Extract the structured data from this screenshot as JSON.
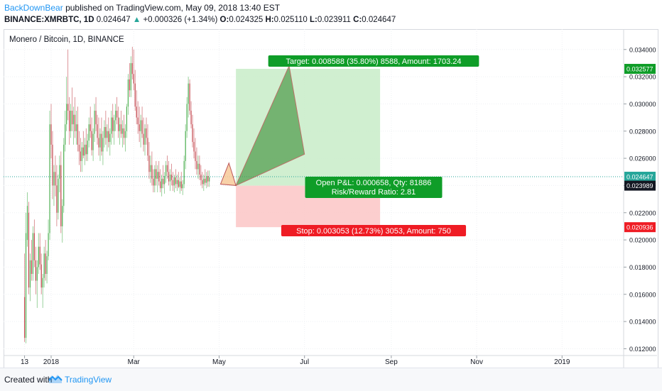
{
  "header": {
    "author": "BackDownBear",
    "published_text": "published on TradingView.com, May 09, 2018 13:40 EST"
  },
  "quote": {
    "symbol": "BINANCE:XMRBTC, 1D",
    "last": "0.024647",
    "change": "+0.000326 (+1.34%)",
    "open_label": "O:",
    "open": "0.024325",
    "high_label": "H:",
    "high": "0.025110",
    "low_label": "L:",
    "low": "0.023911",
    "close_label": "C:",
    "close": "0.024647"
  },
  "footer": {
    "created_with": "Created with",
    "brand": "TradingView"
  },
  "colors": {
    "up": "#26a69a",
    "candle_green": "#4caf50",
    "candle_red": "#c2434a",
    "target_zone": "#c8ecc8",
    "stop_zone": "#fcc6c6",
    "target_label": "#0f9d28",
    "stop_label": "#ef1c24",
    "price_line": "#26a69a",
    "pattern_fill": "#4e9a4a",
    "pattern_fill_orange": "#f7c99a",
    "pattern_stroke": "#b23b3b"
  },
  "chart_data": {
    "type": "candlestick",
    "title": "Monero / Bitcoin, 1D, BINANCE",
    "y_ticks": [
      "0.034000",
      "0.032000",
      "0.030000",
      "0.028000",
      "0.026000",
      "0.024000",
      "0.022000",
      "0.020000",
      "0.018000",
      "0.016000",
      "0.014000",
      "0.012000"
    ],
    "ylim": [
      0.0115,
      0.0355
    ],
    "x_ticks": [
      {
        "label": "13",
        "date": "2017-12-13"
      },
      {
        "label": "2018",
        "date": "2018-01-01"
      },
      {
        "label": "Mar",
        "date": "2018-03-01"
      },
      {
        "label": "May",
        "date": "2018-05-01"
      },
      {
        "label": "Jul",
        "date": "2018-07-01"
      },
      {
        "label": "Sep",
        "date": "2018-09-01"
      },
      {
        "label": "Nov",
        "date": "2018-11-01"
      },
      {
        "label": "2019",
        "date": "2019-01-01"
      }
    ],
    "xlim": [
      "2017-11-28",
      "2019-02-14"
    ],
    "grid": true,
    "price_labels": [
      {
        "value": 0.032577,
        "text": "0.032577",
        "kind": "target"
      },
      {
        "value": 0.024647,
        "text": "0.024647",
        "kind": "last"
      },
      {
        "value": 0.023989,
        "text": "0.023989",
        "kind": "neutral"
      },
      {
        "value": 0.020936,
        "text": "0.020936",
        "kind": "stop"
      }
    ],
    "position": {
      "entry": 0.023989,
      "target": 0.032577,
      "stop": 0.020936,
      "start": "2018-05-13",
      "end": "2018-08-24",
      "target_label": "Target: 0.008588 (35.80%) 8588, Amount: 1703.24",
      "stop_label": "Stop: 0.003053 (12.73%) 3053, Amount: 750",
      "pnl_label": "Open P&L: 0.000658, Qty: 81886",
      "rr_label": "Risk/Reward Ratio: 2.81"
    },
    "pattern_points": [
      {
        "date": "2018-05-02",
        "price": 0.0241
      },
      {
        "date": "2018-05-08",
        "price": 0.02565
      },
      {
        "date": "2018-05-13",
        "price": 0.024
      },
      {
        "date": "2018-06-20",
        "price": 0.0328
      },
      {
        "date": "2018-07-01",
        "price": 0.0263
      },
      {
        "date": "2018-05-13",
        "price": 0.024
      }
    ],
    "candles": [
      {
        "t": "2017-12-13",
        "o": 0.0158,
        "h": 0.019,
        "l": 0.0125,
        "c": 0.0128
      },
      {
        "t": "2017-12-14",
        "o": 0.0128,
        "h": 0.022,
        "l": 0.0124,
        "c": 0.0205
      },
      {
        "t": "2017-12-15",
        "o": 0.02,
        "h": 0.0235,
        "l": 0.0195,
        "c": 0.0225
      },
      {
        "t": "2017-12-16",
        "o": 0.022,
        "h": 0.0228,
        "l": 0.016,
        "c": 0.0165
      },
      {
        "t": "2017-12-17",
        "o": 0.0165,
        "h": 0.019,
        "l": 0.0155,
        "c": 0.0185
      },
      {
        "t": "2017-12-18",
        "o": 0.0185,
        "h": 0.02,
        "l": 0.017,
        "c": 0.0175
      },
      {
        "t": "2017-12-19",
        "o": 0.0175,
        "h": 0.021,
        "l": 0.017,
        "c": 0.0205
      },
      {
        "t": "2017-12-20",
        "o": 0.0205,
        "h": 0.0215,
        "l": 0.018,
        "c": 0.0185
      },
      {
        "t": "2017-12-21",
        "o": 0.0185,
        "h": 0.0195,
        "l": 0.016,
        "c": 0.017
      },
      {
        "t": "2017-12-22",
        "o": 0.017,
        "h": 0.0185,
        "l": 0.015,
        "c": 0.018
      },
      {
        "t": "2017-12-23",
        "o": 0.018,
        "h": 0.0205,
        "l": 0.0175,
        "c": 0.0195
      },
      {
        "t": "2017-12-24",
        "o": 0.0195,
        "h": 0.0205,
        "l": 0.0178,
        "c": 0.0182
      },
      {
        "t": "2017-12-25",
        "o": 0.0182,
        "h": 0.019,
        "l": 0.016,
        "c": 0.0165
      },
      {
        "t": "2017-12-26",
        "o": 0.0165,
        "h": 0.0175,
        "l": 0.015,
        "c": 0.0172
      },
      {
        "t": "2017-12-27",
        "o": 0.0172,
        "h": 0.0195,
        "l": 0.0165,
        "c": 0.019
      },
      {
        "t": "2017-12-28",
        "o": 0.019,
        "h": 0.02,
        "l": 0.017,
        "c": 0.0175
      },
      {
        "t": "2017-12-29",
        "o": 0.0175,
        "h": 0.0192,
        "l": 0.0168,
        "c": 0.0188
      },
      {
        "t": "2017-12-30",
        "o": 0.0188,
        "h": 0.0215,
        "l": 0.0185,
        "c": 0.0205
      },
      {
        "t": "2017-12-31",
        "o": 0.0205,
        "h": 0.0295,
        "l": 0.02,
        "c": 0.0285
      },
      {
        "t": "2018-01-01",
        "o": 0.0285,
        "h": 0.03,
        "l": 0.026,
        "c": 0.027
      },
      {
        "t": "2018-01-02",
        "o": 0.027,
        "h": 0.028,
        "l": 0.023,
        "c": 0.024
      },
      {
        "t": "2018-01-03",
        "o": 0.024,
        "h": 0.0255,
        "l": 0.0225,
        "c": 0.025
      },
      {
        "t": "2018-01-04",
        "o": 0.025,
        "h": 0.0262,
        "l": 0.0232,
        "c": 0.024
      },
      {
        "t": "2018-01-05",
        "o": 0.024,
        "h": 0.0255,
        "l": 0.021,
        "c": 0.022
      },
      {
        "t": "2018-01-06",
        "o": 0.022,
        "h": 0.0248,
        "l": 0.0215,
        "c": 0.0245
      },
      {
        "t": "2018-01-07",
        "o": 0.0245,
        "h": 0.0262,
        "l": 0.0235,
        "c": 0.0255
      },
      {
        "t": "2018-01-08",
        "o": 0.0255,
        "h": 0.0265,
        "l": 0.0205,
        "c": 0.021
      },
      {
        "t": "2018-01-09",
        "o": 0.021,
        "h": 0.023,
        "l": 0.0198,
        "c": 0.0225
      },
      {
        "t": "2018-01-10",
        "o": 0.0225,
        "h": 0.0275,
        "l": 0.022,
        "c": 0.027
      },
      {
        "t": "2018-01-11",
        "o": 0.027,
        "h": 0.0295,
        "l": 0.0265,
        "c": 0.0285
      },
      {
        "t": "2018-01-12",
        "o": 0.0285,
        "h": 0.032,
        "l": 0.028,
        "c": 0.03
      },
      {
        "t": "2018-01-13",
        "o": 0.03,
        "h": 0.034,
        "l": 0.0288,
        "c": 0.0295
      },
      {
        "t": "2018-01-14",
        "o": 0.0295,
        "h": 0.0305,
        "l": 0.027,
        "c": 0.028
      },
      {
        "t": "2018-01-15",
        "o": 0.028,
        "h": 0.03,
        "l": 0.0275,
        "c": 0.0295
      },
      {
        "t": "2018-01-16",
        "o": 0.0295,
        "h": 0.0312,
        "l": 0.028,
        "c": 0.0285
      },
      {
        "t": "2018-01-17",
        "o": 0.0285,
        "h": 0.0298,
        "l": 0.027,
        "c": 0.0292
      },
      {
        "t": "2018-01-18",
        "o": 0.0292,
        "h": 0.0305,
        "l": 0.0275,
        "c": 0.028
      },
      {
        "t": "2018-01-19",
        "o": 0.028,
        "h": 0.0295,
        "l": 0.027,
        "c": 0.0285
      },
      {
        "t": "2018-01-20",
        "o": 0.0285,
        "h": 0.0298,
        "l": 0.0265,
        "c": 0.027
      },
      {
        "t": "2018-01-21",
        "o": 0.027,
        "h": 0.028,
        "l": 0.0255,
        "c": 0.0265
      },
      {
        "t": "2018-01-22",
        "o": 0.0265,
        "h": 0.0275,
        "l": 0.025,
        "c": 0.0258
      },
      {
        "t": "2018-01-23",
        "o": 0.0258,
        "h": 0.0272,
        "l": 0.025,
        "c": 0.0268
      },
      {
        "t": "2018-01-24",
        "o": 0.0268,
        "h": 0.028,
        "l": 0.026,
        "c": 0.0262
      },
      {
        "t": "2018-01-25",
        "o": 0.0262,
        "h": 0.0275,
        "l": 0.0255,
        "c": 0.027
      },
      {
        "t": "2018-01-26",
        "o": 0.027,
        "h": 0.0282,
        "l": 0.0258,
        "c": 0.0263
      },
      {
        "t": "2018-01-27",
        "o": 0.0263,
        "h": 0.0278,
        "l": 0.0258,
        "c": 0.0273
      },
      {
        "t": "2018-01-28",
        "o": 0.0273,
        "h": 0.029,
        "l": 0.0268,
        "c": 0.0285
      },
      {
        "t": "2018-01-29",
        "o": 0.0285,
        "h": 0.0298,
        "l": 0.0275,
        "c": 0.028
      },
      {
        "t": "2018-01-30",
        "o": 0.028,
        "h": 0.029,
        "l": 0.0262,
        "c": 0.0266
      },
      {
        "t": "2018-01-31",
        "o": 0.0266,
        "h": 0.0282,
        "l": 0.0258,
        "c": 0.0278
      },
      {
        "t": "2018-02-01",
        "o": 0.0278,
        "h": 0.03,
        "l": 0.0272,
        "c": 0.0295
      },
      {
        "t": "2018-02-02",
        "o": 0.0295,
        "h": 0.0305,
        "l": 0.028,
        "c": 0.0285
      },
      {
        "t": "2018-02-03",
        "o": 0.0285,
        "h": 0.0292,
        "l": 0.027,
        "c": 0.0275
      },
      {
        "t": "2018-02-04",
        "o": 0.0275,
        "h": 0.029,
        "l": 0.0262,
        "c": 0.0268
      },
      {
        "t": "2018-02-05",
        "o": 0.0268,
        "h": 0.0282,
        "l": 0.0258,
        "c": 0.0278
      },
      {
        "t": "2018-02-06",
        "o": 0.0278,
        "h": 0.029,
        "l": 0.0262,
        "c": 0.0265
      },
      {
        "t": "2018-02-07",
        "o": 0.0265,
        "h": 0.028,
        "l": 0.0255,
        "c": 0.0275
      },
      {
        "t": "2018-02-08",
        "o": 0.0275,
        "h": 0.0288,
        "l": 0.0268,
        "c": 0.0283
      },
      {
        "t": "2018-02-09",
        "o": 0.0283,
        "h": 0.0295,
        "l": 0.027,
        "c": 0.0275
      },
      {
        "t": "2018-02-10",
        "o": 0.0275,
        "h": 0.0285,
        "l": 0.0265,
        "c": 0.028
      },
      {
        "t": "2018-02-11",
        "o": 0.028,
        "h": 0.029,
        "l": 0.0268,
        "c": 0.0272
      },
      {
        "t": "2018-02-12",
        "o": 0.0272,
        "h": 0.0282,
        "l": 0.0262,
        "c": 0.0278
      },
      {
        "t": "2018-02-13",
        "o": 0.0278,
        "h": 0.0295,
        "l": 0.027,
        "c": 0.029
      },
      {
        "t": "2018-02-14",
        "o": 0.029,
        "h": 0.03,
        "l": 0.0275,
        "c": 0.028
      },
      {
        "t": "2018-02-15",
        "o": 0.028,
        "h": 0.0292,
        "l": 0.027,
        "c": 0.0288
      },
      {
        "t": "2018-02-16",
        "o": 0.0288,
        "h": 0.03,
        "l": 0.028,
        "c": 0.0295
      },
      {
        "t": "2018-02-17",
        "o": 0.0295,
        "h": 0.0305,
        "l": 0.0285,
        "c": 0.029
      },
      {
        "t": "2018-02-18",
        "o": 0.029,
        "h": 0.0298,
        "l": 0.0275,
        "c": 0.028
      },
      {
        "t": "2018-02-19",
        "o": 0.028,
        "h": 0.029,
        "l": 0.027,
        "c": 0.0285
      },
      {
        "t": "2018-02-20",
        "o": 0.0285,
        "h": 0.0295,
        "l": 0.0275,
        "c": 0.0278
      },
      {
        "t": "2018-02-21",
        "o": 0.0278,
        "h": 0.0288,
        "l": 0.0268,
        "c": 0.0282
      },
      {
        "t": "2018-02-22",
        "o": 0.0282,
        "h": 0.0292,
        "l": 0.027,
        "c": 0.0275
      },
      {
        "t": "2018-02-23",
        "o": 0.0275,
        "h": 0.0285,
        "l": 0.0265,
        "c": 0.028
      },
      {
        "t": "2018-02-24",
        "o": 0.028,
        "h": 0.03,
        "l": 0.0275,
        "c": 0.0298
      },
      {
        "t": "2018-02-25",
        "o": 0.0298,
        "h": 0.0322,
        "l": 0.0292,
        "c": 0.0318
      },
      {
        "t": "2018-02-26",
        "o": 0.0318,
        "h": 0.033,
        "l": 0.0305,
        "c": 0.031
      },
      {
        "t": "2018-02-27",
        "o": 0.031,
        "h": 0.0335,
        "l": 0.0305,
        "c": 0.033
      },
      {
        "t": "2018-02-28",
        "o": 0.033,
        "h": 0.0342,
        "l": 0.0318,
        "c": 0.0322
      },
      {
        "t": "2018-03-01",
        "o": 0.0322,
        "h": 0.034,
        "l": 0.031,
        "c": 0.0315
      },
      {
        "t": "2018-03-02",
        "o": 0.0315,
        "h": 0.0325,
        "l": 0.0295,
        "c": 0.0298
      },
      {
        "t": "2018-03-03",
        "o": 0.0298,
        "h": 0.031,
        "l": 0.0285,
        "c": 0.029
      },
      {
        "t": "2018-03-04",
        "o": 0.029,
        "h": 0.0302,
        "l": 0.0278,
        "c": 0.0285
      },
      {
        "t": "2018-03-05",
        "o": 0.0285,
        "h": 0.0298,
        "l": 0.0272,
        "c": 0.028
      },
      {
        "t": "2018-03-06",
        "o": 0.028,
        "h": 0.0292,
        "l": 0.0268,
        "c": 0.0288
      },
      {
        "t": "2018-03-07",
        "o": 0.0288,
        "h": 0.0298,
        "l": 0.0275,
        "c": 0.0278
      },
      {
        "t": "2018-03-08",
        "o": 0.0278,
        "h": 0.029,
        "l": 0.0265,
        "c": 0.027
      },
      {
        "t": "2018-03-09",
        "o": 0.027,
        "h": 0.0285,
        "l": 0.0262,
        "c": 0.0282
      },
      {
        "t": "2018-03-10",
        "o": 0.0282,
        "h": 0.029,
        "l": 0.027,
        "c": 0.0275
      },
      {
        "t": "2018-03-11",
        "o": 0.0275,
        "h": 0.0285,
        "l": 0.0258,
        "c": 0.0262
      },
      {
        "t": "2018-03-12",
        "o": 0.0262,
        "h": 0.0272,
        "l": 0.0245,
        "c": 0.025
      },
      {
        "t": "2018-03-13",
        "o": 0.025,
        "h": 0.0262,
        "l": 0.0242,
        "c": 0.0255
      },
      {
        "t": "2018-03-14",
        "o": 0.0255,
        "h": 0.0265,
        "l": 0.024,
        "c": 0.0245
      },
      {
        "t": "2018-03-15",
        "o": 0.0245,
        "h": 0.0252,
        "l": 0.0235,
        "c": 0.024
      },
      {
        "t": "2018-03-16",
        "o": 0.024,
        "h": 0.0255,
        "l": 0.0235,
        "c": 0.0252
      },
      {
        "t": "2018-03-17",
        "o": 0.0252,
        "h": 0.0258,
        "l": 0.024,
        "c": 0.0245
      },
      {
        "t": "2018-03-18",
        "o": 0.0245,
        "h": 0.0255,
        "l": 0.0235,
        "c": 0.025
      },
      {
        "t": "2018-03-19",
        "o": 0.025,
        "h": 0.0258,
        "l": 0.024,
        "c": 0.0243
      },
      {
        "t": "2018-03-20",
        "o": 0.0243,
        "h": 0.0252,
        "l": 0.0235,
        "c": 0.0238
      },
      {
        "t": "2018-03-21",
        "o": 0.0238,
        "h": 0.0248,
        "l": 0.0232,
        "c": 0.0245
      },
      {
        "t": "2018-03-22",
        "o": 0.0245,
        "h": 0.0255,
        "l": 0.0238,
        "c": 0.0241
      },
      {
        "t": "2018-03-23",
        "o": 0.0241,
        "h": 0.025,
        "l": 0.0234,
        "c": 0.0247
      },
      {
        "t": "2018-03-24",
        "o": 0.0247,
        "h": 0.0258,
        "l": 0.0242,
        "c": 0.0255
      },
      {
        "t": "2018-03-25",
        "o": 0.0255,
        "h": 0.0262,
        "l": 0.0245,
        "c": 0.025
      },
      {
        "t": "2018-03-26",
        "o": 0.025,
        "h": 0.0258,
        "l": 0.024,
        "c": 0.0243
      },
      {
        "t": "2018-03-27",
        "o": 0.0243,
        "h": 0.0252,
        "l": 0.0236,
        "c": 0.0248
      },
      {
        "t": "2018-03-28",
        "o": 0.0248,
        "h": 0.0256,
        "l": 0.024,
        "c": 0.0244
      },
      {
        "t": "2018-03-29",
        "o": 0.0244,
        "h": 0.025,
        "l": 0.0236,
        "c": 0.024
      },
      {
        "t": "2018-03-30",
        "o": 0.024,
        "h": 0.0248,
        "l": 0.0235,
        "c": 0.0246
      },
      {
        "t": "2018-03-31",
        "o": 0.0246,
        "h": 0.0252,
        "l": 0.0238,
        "c": 0.0241
      },
      {
        "t": "2018-04-01",
        "o": 0.0241,
        "h": 0.0248,
        "l": 0.0236,
        "c": 0.0244
      },
      {
        "t": "2018-04-02",
        "o": 0.0244,
        "h": 0.025,
        "l": 0.0238,
        "c": 0.0239
      },
      {
        "t": "2018-04-03",
        "o": 0.0239,
        "h": 0.0246,
        "l": 0.0234,
        "c": 0.0243
      },
      {
        "t": "2018-04-04",
        "o": 0.0243,
        "h": 0.025,
        "l": 0.0236,
        "c": 0.0238
      },
      {
        "t": "2018-04-05",
        "o": 0.0238,
        "h": 0.0244,
        "l": 0.0233,
        "c": 0.0241
      },
      {
        "t": "2018-04-06",
        "o": 0.0241,
        "h": 0.0262,
        "l": 0.0238,
        "c": 0.0258
      },
      {
        "t": "2018-04-07",
        "o": 0.0258,
        "h": 0.0285,
        "l": 0.0252,
        "c": 0.028
      },
      {
        "t": "2018-04-08",
        "o": 0.028,
        "h": 0.0305,
        "l": 0.0275,
        "c": 0.03
      },
      {
        "t": "2018-04-09",
        "o": 0.03,
        "h": 0.032,
        "l": 0.029,
        "c": 0.0315
      },
      {
        "t": "2018-04-10",
        "o": 0.0315,
        "h": 0.0318,
        "l": 0.0292,
        "c": 0.0295
      },
      {
        "t": "2018-04-11",
        "o": 0.0295,
        "h": 0.0302,
        "l": 0.0282,
        "c": 0.0285
      },
      {
        "t": "2018-04-12",
        "o": 0.0285,
        "h": 0.0292,
        "l": 0.0268,
        "c": 0.0272
      },
      {
        "t": "2018-04-13",
        "o": 0.0272,
        "h": 0.0282,
        "l": 0.026,
        "c": 0.0265
      },
      {
        "t": "2018-04-14",
        "o": 0.0265,
        "h": 0.0275,
        "l": 0.0252,
        "c": 0.0258
      },
      {
        "t": "2018-04-15",
        "o": 0.0258,
        "h": 0.0268,
        "l": 0.0248,
        "c": 0.0252
      },
      {
        "t": "2018-04-16",
        "o": 0.0252,
        "h": 0.0262,
        "l": 0.0245,
        "c": 0.0256
      },
      {
        "t": "2018-04-17",
        "o": 0.0256,
        "h": 0.0262,
        "l": 0.0244,
        "c": 0.0248
      },
      {
        "t": "2018-04-18",
        "o": 0.0248,
        "h": 0.0255,
        "l": 0.024,
        "c": 0.0244
      },
      {
        "t": "2018-04-19",
        "o": 0.0244,
        "h": 0.025,
        "l": 0.0238,
        "c": 0.0241
      },
      {
        "t": "2018-04-20",
        "o": 0.0241,
        "h": 0.0248,
        "l": 0.0236,
        "c": 0.0245
      },
      {
        "t": "2018-04-21",
        "o": 0.0245,
        "h": 0.0252,
        "l": 0.024,
        "c": 0.0242
      },
      {
        "t": "2018-04-22",
        "o": 0.0242,
        "h": 0.025,
        "l": 0.0238,
        "c": 0.0247
      },
      {
        "t": "2018-04-23",
        "o": 0.0247,
        "h": 0.0251,
        "l": 0.0239,
        "c": 0.0243
      },
      {
        "t": "2018-04-24",
        "o": 0.0243,
        "h": 0.0251,
        "l": 0.0239,
        "c": 0.0246
      }
    ]
  }
}
